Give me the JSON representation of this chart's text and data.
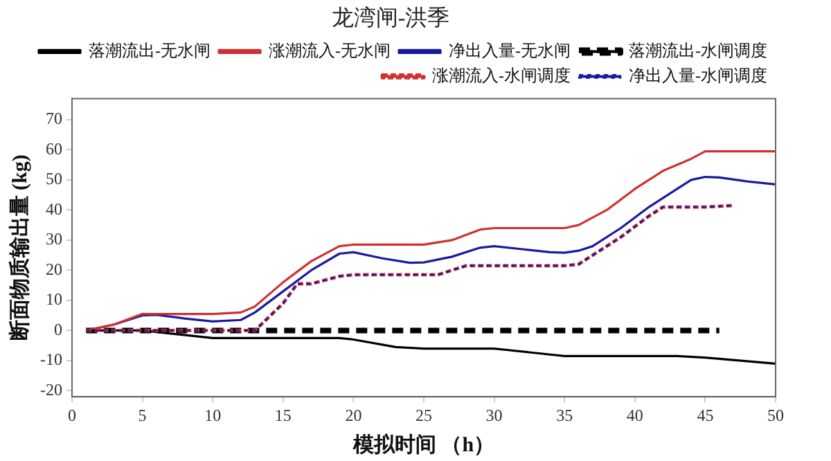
{
  "chart_data": {
    "type": "line",
    "title": "龙湾闸-洪季",
    "xlabel": "模拟时间 （h）",
    "ylabel": "断面物质输出量 (kg)",
    "xlim": [
      0,
      50
    ],
    "xticks": [
      0,
      5,
      10,
      15,
      20,
      25,
      30,
      35,
      40,
      45,
      50
    ],
    "ylim": [
      -22,
      77
    ],
    "yticks": [
      -20,
      -10,
      0,
      10,
      20,
      30,
      40,
      50,
      60,
      70
    ],
    "grid": false,
    "legend": "top right",
    "marker": "none",
    "series": [
      {
        "name": "落潮流出-无水闸",
        "color": "#000000",
        "line_style": "solid",
        "x": [
          1,
          5,
          7,
          10,
          19,
          20,
          23,
          25,
          30,
          31,
          34,
          35,
          43,
          45,
          50
        ],
        "values": [
          0,
          0,
          -1,
          -2.5,
          -2.5,
          -3,
          -5.5,
          -6,
          -6,
          -6.5,
          -8,
          -8.5,
          -8.5,
          -9,
          -11
        ]
      },
      {
        "name": "涨潮流入-无水闸",
        "color": "#d03030",
        "line_style": "solid",
        "x": [
          1,
          3,
          5,
          10,
          12,
          13,
          15,
          17,
          19,
          20,
          25,
          27,
          29,
          30,
          35,
          36,
          38,
          40,
          42,
          44,
          45,
          46,
          50
        ],
        "values": [
          0,
          2,
          5.5,
          5.5,
          6,
          8,
          16,
          23,
          28,
          28.5,
          28.5,
          30,
          33.5,
          34,
          34,
          35,
          40,
          47,
          53,
          57,
          59.5,
          59.5,
          59.5
        ]
      },
      {
        "name": "净出入量-无水闸",
        "color": "#1a1aa0",
        "line_style": "solid",
        "x": [
          1,
          3,
          5,
          6,
          8,
          10,
          12,
          13,
          15,
          17,
          19,
          20,
          22,
          24,
          25,
          27,
          29,
          30,
          32,
          34,
          35,
          36,
          37,
          39,
          41,
          43,
          44,
          45,
          46,
          48,
          50
        ],
        "values": [
          0,
          2,
          5,
          5.2,
          4,
          3,
          3.5,
          6,
          13,
          20,
          25.5,
          26,
          24,
          22.5,
          22.6,
          24.5,
          27.5,
          28,
          27,
          26,
          25.8,
          26.5,
          28,
          34,
          41,
          47,
          50,
          51,
          50.8,
          49.5,
          48.5
        ]
      },
      {
        "name": "落潮流出-水闸调度",
        "color": "#000000",
        "line_style": "dashed",
        "x": [
          1,
          46
        ],
        "values": [
          0,
          0
        ]
      },
      {
        "name": "涨潮流入-水闸调度",
        "color": "#d03030",
        "line_style": "dashed",
        "x": [
          1,
          13,
          15,
          16,
          17,
          19,
          20,
          26,
          28,
          30,
          35,
          36,
          37,
          39,
          41,
          42,
          45,
          47
        ],
        "values": [
          0,
          0,
          9,
          15.5,
          15.5,
          18,
          18.5,
          18.5,
          21.5,
          21.5,
          21.5,
          22,
          25,
          31,
          38,
          41,
          41,
          41.5
        ]
      },
      {
        "name": "净出入量-水闸调度",
        "color": "#1a1aa0",
        "line_style": "dashed",
        "x": [
          1,
          13,
          15,
          16,
          17,
          19,
          20,
          26,
          28,
          30,
          35,
          36,
          37,
          39,
          41,
          42,
          45,
          47
        ],
        "values": [
          0,
          0,
          9,
          15.5,
          15.5,
          18,
          18.5,
          18.5,
          21.5,
          21.5,
          21.5,
          22,
          25,
          31,
          38,
          41,
          41,
          41.5
        ]
      }
    ]
  }
}
